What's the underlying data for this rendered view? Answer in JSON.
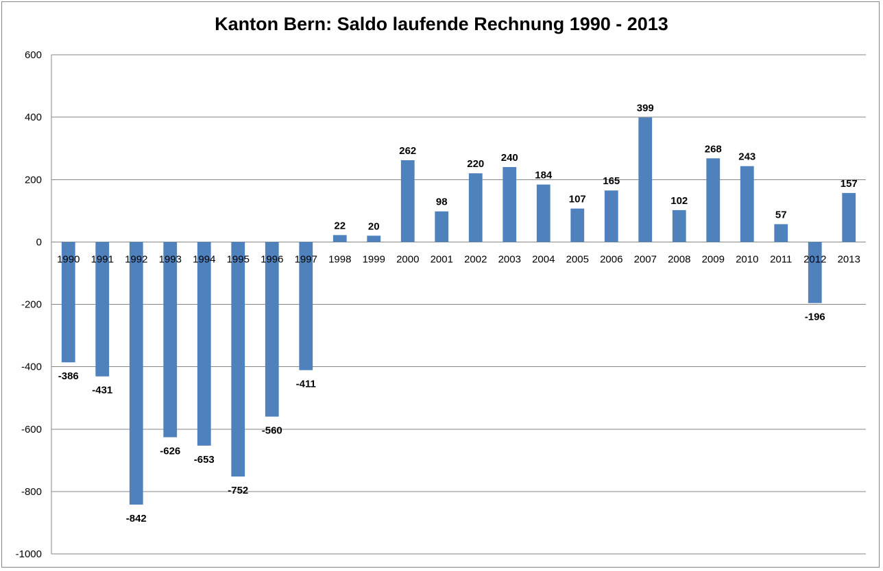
{
  "chart_data": {
    "type": "bar",
    "title": "Kanton Bern: Saldo laufende Rechnung 1990 - 2013",
    "xlabel": "",
    "ylabel": "",
    "categories": [
      "1990",
      "1991",
      "1992",
      "1993",
      "1994",
      "1995",
      "1996",
      "1997",
      "1998",
      "1999",
      "2000",
      "2001",
      "2002",
      "2003",
      "2004",
      "2005",
      "2006",
      "2007",
      "2008",
      "2009",
      "2010",
      "2011",
      "2012",
      "2013"
    ],
    "values": [
      -386,
      -431,
      -842,
      -626,
      -653,
      -752,
      -560,
      -411,
      22,
      20,
      262,
      98,
      220,
      240,
      184,
      107,
      165,
      399,
      102,
      268,
      243,
      57,
      -196,
      157
    ],
    "ylim": [
      -1000,
      600
    ],
    "yticks": [
      600,
      400,
      200,
      0,
      -200,
      -400,
      -600,
      -800,
      -1000
    ],
    "grid": true,
    "legend": "none",
    "bar_color": "#4F81BD",
    "grid_color": "#868686"
  }
}
